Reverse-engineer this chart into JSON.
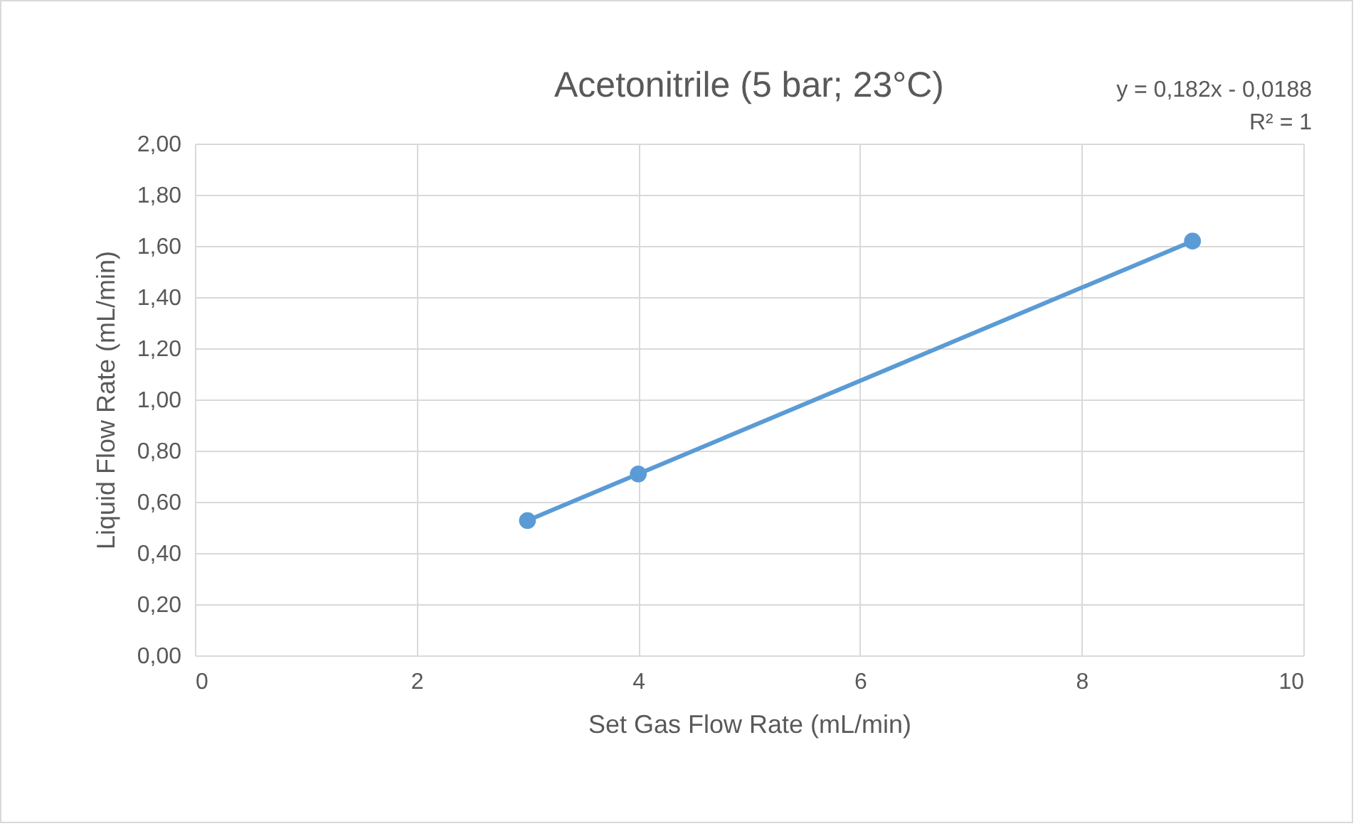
{
  "chart_data": {
    "type": "scatter",
    "title": "Acetonitrile (5 bar; 23°C)",
    "xlabel": "Set Gas Flow Rate (mL/min)",
    "ylabel": "Liquid Flow Rate (mL/min)",
    "annotations": [
      "y = 0,182x - 0,0188",
      "R² = 1"
    ],
    "series": [
      {
        "type": "line",
        "color": "#5b9bd5",
        "x": [
          3,
          9
        ],
        "values": [
          0.527,
          1.619
        ]
      },
      {
        "color": "#5b9bd5",
        "marker": "circle",
        "x": [
          3,
          4,
          9
        ],
        "values": [
          0.527,
          0.709,
          1.619
        ]
      }
    ],
    "xlim": [
      0,
      10
    ],
    "xticks": [
      0,
      2,
      4,
      6,
      8,
      10
    ],
    "ylim": [
      0,
      2
    ],
    "yticks": [
      {
        "value": 0,
        "label": "0,00"
      },
      {
        "value": 0.2,
        "label": "0,20"
      },
      {
        "value": 0.4,
        "label": "0,40"
      },
      {
        "value": 0.6,
        "label": "0,60"
      },
      {
        "value": 0.8,
        "label": "0,80"
      },
      {
        "value": 1,
        "label": "1,00"
      },
      {
        "value": 1.2,
        "label": "1,20"
      },
      {
        "value": 1.4,
        "label": "1,40"
      },
      {
        "value": 1.6,
        "label": "1,60"
      },
      {
        "value": 1.8,
        "label": "1,80"
      },
      {
        "value": 2,
        "label": "2,00"
      }
    ],
    "grid": true
  }
}
